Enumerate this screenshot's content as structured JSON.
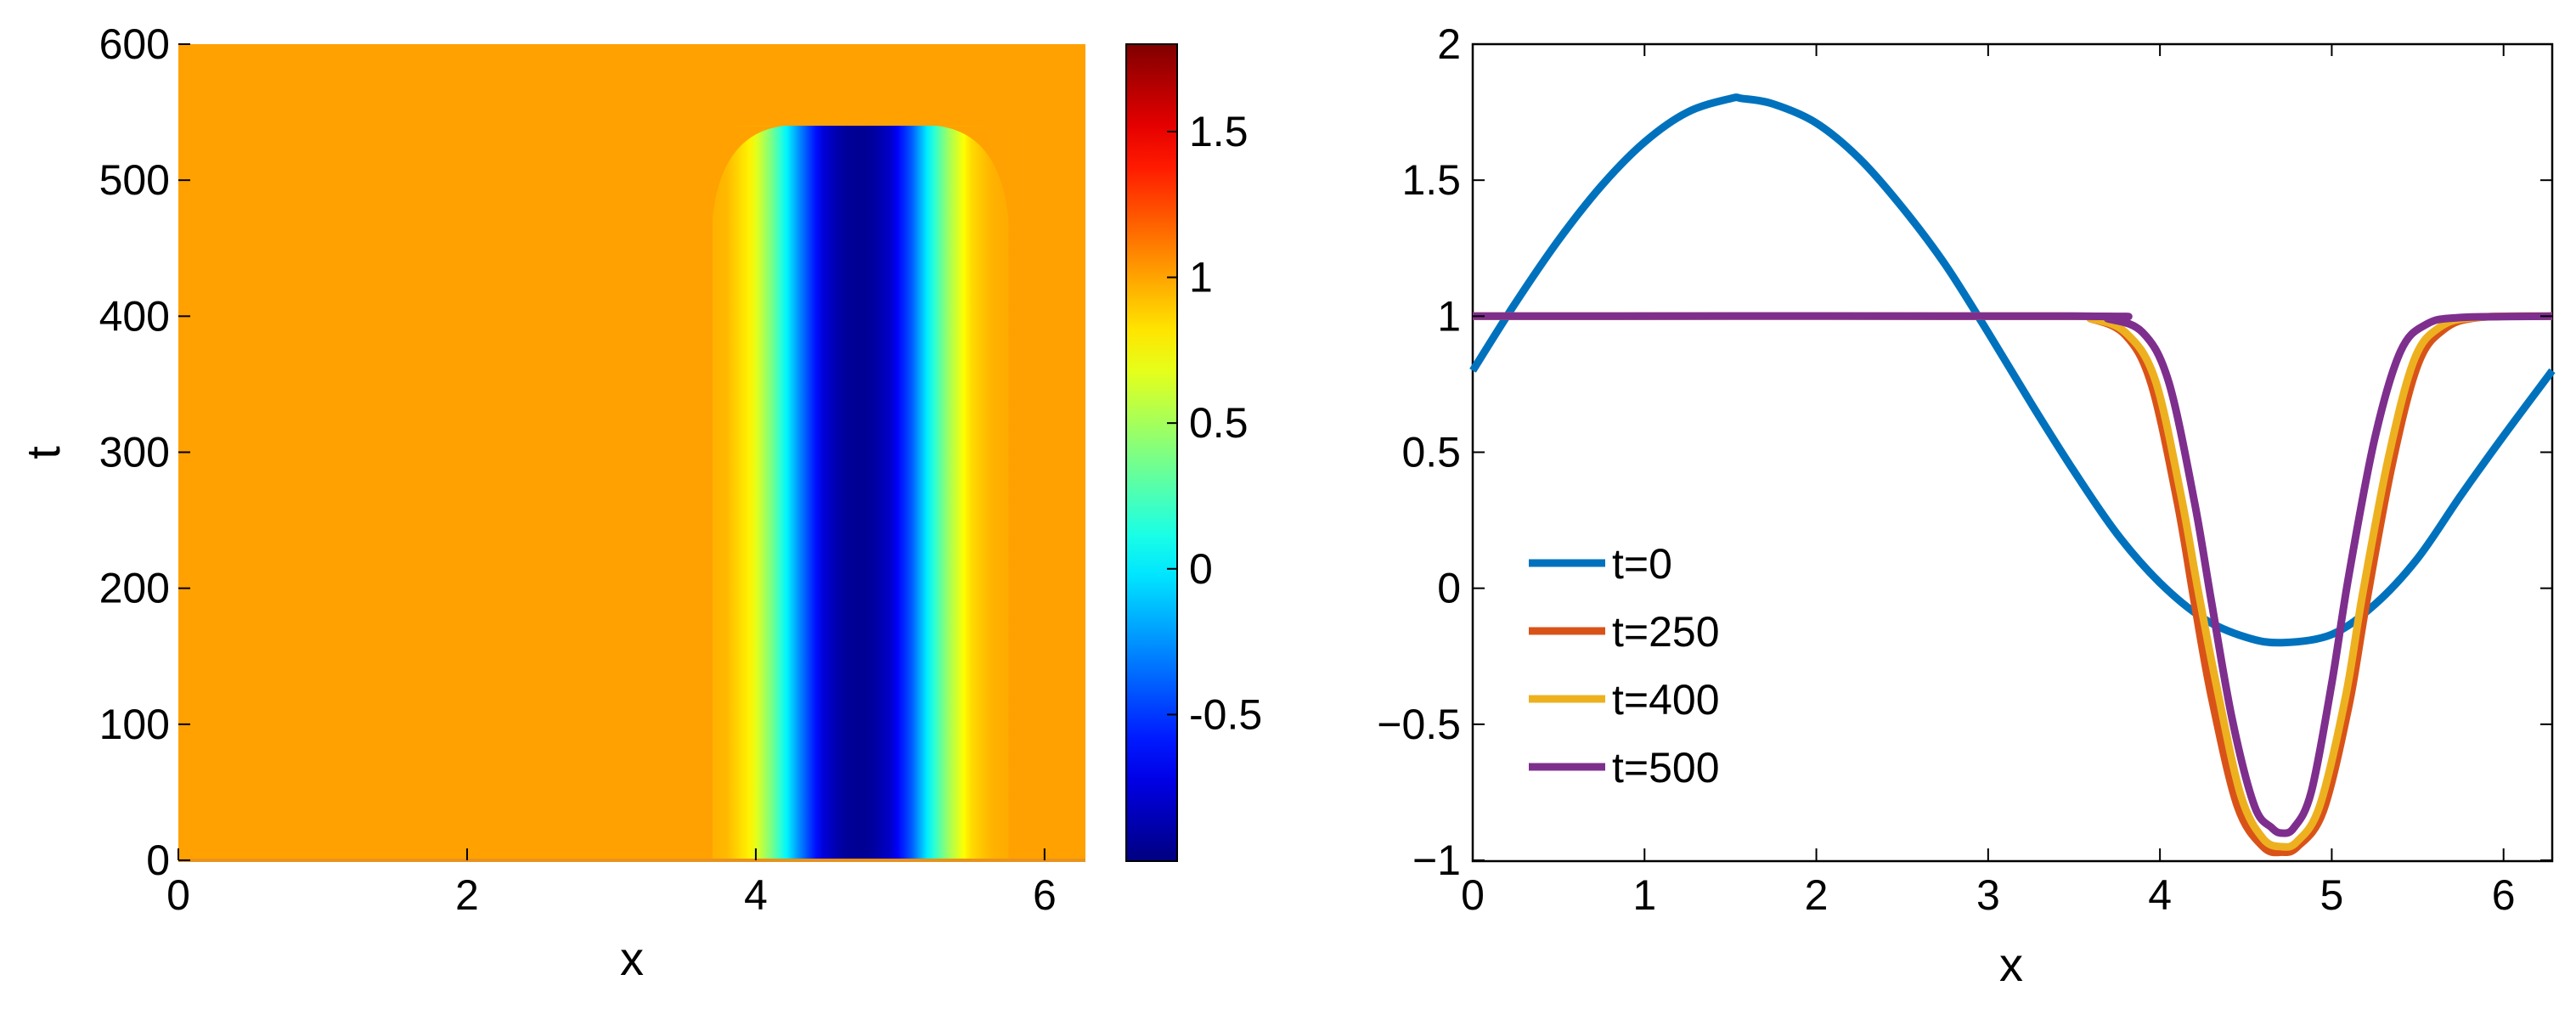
{
  "chart_data": [
    {
      "type": "heatmap",
      "title": "",
      "xlabel": "x",
      "ylabel": "t",
      "xlim": [
        0,
        6.2832
      ],
      "ylim": [
        0,
        600
      ],
      "xticks": [
        0,
        2,
        4,
        6
      ],
      "xtick_labels": [
        "0",
        "2",
        "4",
        "6"
      ],
      "yticks": [
        0,
        100,
        200,
        300,
        400,
        500,
        600
      ],
      "ytick_labels": [
        "0",
        "100",
        "200",
        "300",
        "400",
        "500",
        "600"
      ],
      "grid": false,
      "colorbar": {
        "clim": [
          -1,
          1.8
        ],
        "ticks": [
          -0.5,
          0,
          0.5,
          1,
          1.5
        ],
        "tick_labels": [
          "-0.5",
          "0",
          "0.5",
          "1",
          "1.5"
        ],
        "colormap": "jet"
      },
      "background_value": 1,
      "features": [
        {
          "description": "trough near x=4.71 with u≈-1 that persists over time",
          "x_center": 4.71,
          "t_start": 0,
          "t_end": 540,
          "min_value": -1
        }
      ]
    },
    {
      "type": "line",
      "title": "",
      "xlabel": "x",
      "ylabel": "",
      "xlim": [
        0,
        6.2832
      ],
      "ylim": [
        -1,
        2
      ],
      "xticks": [
        0,
        1,
        2,
        3,
        4,
        5,
        6
      ],
      "xtick_labels": [
        "0",
        "1",
        "2",
        "3",
        "4",
        "5",
        "6"
      ],
      "yticks": [
        -1,
        -0.5,
        0,
        0.5,
        1,
        1.5,
        2
      ],
      "ytick_labels": [
        "−1",
        "−0.5",
        "0",
        "0.5",
        "1",
        "1.5",
        "2"
      ],
      "grid": false,
      "legend_position": "left",
      "series": [
        {
          "name": "t=0",
          "color": "#0072BD",
          "x": [
            0,
            0.25,
            0.5,
            0.75,
            1.0,
            1.25,
            1.5,
            1.57,
            1.75,
            2.0,
            2.25,
            2.5,
            2.75,
            3.0,
            3.25,
            3.5,
            3.75,
            4.0,
            4.25,
            4.5,
            4.71,
            5.0,
            5.25,
            5.5,
            5.75,
            6.0,
            6.2832
          ],
          "y": [
            0.8,
            1.05,
            1.28,
            1.48,
            1.64,
            1.75,
            1.8,
            1.8,
            1.78,
            1.71,
            1.58,
            1.4,
            1.19,
            0.94,
            0.68,
            0.43,
            0.2,
            0.02,
            -0.11,
            -0.18,
            -0.2,
            -0.17,
            -0.06,
            0.11,
            0.34,
            0.56,
            0.8
          ]
        },
        {
          "name": "t=250",
          "color": "#D95319",
          "x": [
            0,
            3.4,
            3.6,
            3.8,
            3.95,
            4.1,
            4.2,
            4.3,
            4.45,
            4.6,
            4.71,
            4.8,
            4.95,
            5.1,
            5.2,
            5.35,
            5.5,
            5.65,
            5.85,
            6.2832
          ],
          "y": [
            1,
            1,
            0.99,
            0.93,
            0.75,
            0.32,
            -0.05,
            -0.4,
            -0.8,
            -0.95,
            -0.97,
            -0.95,
            -0.82,
            -0.43,
            -0.06,
            0.45,
            0.82,
            0.95,
            0.995,
            1
          ]
        },
        {
          "name": "t=400",
          "color": "#EDB120",
          "x": [
            0,
            3.4,
            3.6,
            3.8,
            3.97,
            4.12,
            4.22,
            4.33,
            4.47,
            4.6,
            4.71,
            4.8,
            4.93,
            5.08,
            5.18,
            5.33,
            5.48,
            5.63,
            5.83,
            6.2832
          ],
          "y": [
            1,
            1,
            0.99,
            0.94,
            0.77,
            0.35,
            0.0,
            -0.36,
            -0.76,
            -0.92,
            -0.95,
            -0.93,
            -0.8,
            -0.4,
            -0.02,
            0.48,
            0.84,
            0.96,
            0.995,
            1
          ]
        },
        {
          "name": "t=500",
          "color": "#7E2F8E",
          "x": [
            0,
            3.5,
            3.7,
            3.9,
            4.05,
            4.2,
            4.3,
            4.42,
            4.55,
            4.65,
            4.71,
            4.78,
            4.88,
            5.0,
            5.1,
            5.25,
            5.4,
            5.55,
            5.75,
            6.2832
          ],
          "y": [
            1,
            1,
            0.99,
            0.94,
            0.76,
            0.32,
            -0.05,
            -0.48,
            -0.8,
            -0.88,
            -0.9,
            -0.88,
            -0.75,
            -0.35,
            0.05,
            0.55,
            0.87,
            0.97,
            0.995,
            1
          ]
        }
      ]
    }
  ]
}
